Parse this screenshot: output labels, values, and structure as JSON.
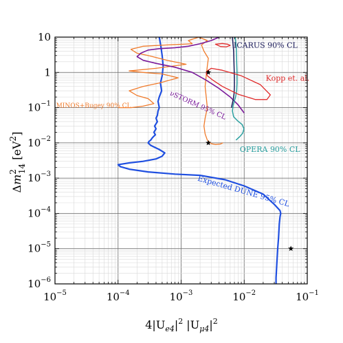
{
  "chart_data": {
    "type": "line",
    "x_scale": "log",
    "y_scale": "log",
    "xlim": [
      1e-05,
      0.1
    ],
    "ylim": [
      1e-06,
      10
    ],
    "grid": true,
    "xlabel": "4|U_e4|^2 |U_μ4|^2",
    "ylabel": "Δm_14^2 [eV^2]",
    "x_ticks": [
      {
        "base": "10",
        "exp": "−5"
      },
      {
        "base": "10",
        "exp": "−4"
      },
      {
        "base": "10",
        "exp": "−3"
      },
      {
        "base": "10",
        "exp": "−2"
      },
      {
        "base": "10",
        "exp": "−1"
      }
    ],
    "y_ticks": [
      {
        "label": "10",
        "exp": ""
      },
      {
        "label": "1",
        "exp": ""
      },
      {
        "base": "10",
        "exp": "−1"
      },
      {
        "base": "10",
        "exp": "−2"
      },
      {
        "base": "10",
        "exp": "−3"
      },
      {
        "base": "10",
        "exp": "−4"
      },
      {
        "base": "10",
        "exp": "−5"
      },
      {
        "base": "10",
        "exp": "−6"
      }
    ],
    "series": [
      {
        "name": "Expected DUNE 95% CL",
        "color": "#1f4fe0",
        "width": 2.2,
        "x": [
          0.00045,
          0.00046,
          0.00048,
          0.0005,
          0.00052,
          0.0005,
          0.00047,
          0.00049,
          0.00045,
          0.00043,
          0.00045,
          0.00043,
          0.00042,
          0.0004,
          0.00042,
          0.00038,
          0.0004,
          0.00037,
          0.00039,
          0.00035,
          0.00033,
          0.00031,
          0.0003,
          0.00033,
          0.00045,
          0.00055,
          0.0005,
          0.0004,
          0.00025,
          0.00015,
          0.0001,
          0.00011,
          0.00015,
          0.0003,
          0.0008,
          0.002,
          0.005,
          0.01,
          0.02,
          0.03,
          0.037,
          0.038,
          0.037,
          0.036,
          0.035,
          0.034,
          0.033,
          0.032,
          0.032
        ],
        "y": [
          10,
          8,
          5,
          3,
          1.5,
          0.8,
          0.5,
          0.3,
          0.2,
          0.15,
          0.1,
          0.08,
          0.06,
          0.05,
          0.04,
          0.03,
          0.025,
          0.02,
          0.017,
          0.014,
          0.012,
          0.011,
          0.01,
          0.0085,
          0.0065,
          0.0052,
          0.0042,
          0.0035,
          0.003,
          0.0027,
          0.0024,
          0.0021,
          0.0018,
          0.0015,
          0.0013,
          0.0012,
          0.0009,
          0.0006,
          0.00035,
          0.00018,
          0.00012,
          0.0001,
          8e-05,
          5e-05,
          2e-05,
          1e-05,
          4e-06,
          1.5e-06,
          1e-06
        ]
      },
      {
        "name": "MINOS+Bugey 90% CL",
        "color": "#f07a2a",
        "width": 1.3,
        "x": [
          0.0001,
          0.00016,
          0.00025,
          0.00037,
          0.0003,
          0.0002,
          0.00015,
          0.00025,
          0.00045,
          0.0009,
          0.0005,
          0.00025,
          0.00015,
          0.0004,
          0.0012,
          0.0006,
          0.0003,
          0.0002,
          0.00016,
          0.00025,
          0.0006,
          0.0015,
          0.0013,
          0.0019,
          0.0026,
          0.0021,
          0.0023,
          0.0027,
          0.0026,
          0.0025,
          0.0024,
          0.0025,
          0.0026,
          0.0025,
          0.0024,
          0.0023,
          0.0024,
          0.0026,
          0.003,
          0.0035,
          0.004,
          0.0042,
          0.0043,
          0.0044,
          0.0046
        ],
        "y": [
          0.1,
          0.1,
          0.11,
          0.13,
          0.18,
          0.22,
          0.3,
          0.4,
          0.5,
          0.7,
          0.9,
          1.0,
          1.1,
          1.3,
          1.7,
          2.2,
          3.0,
          3.5,
          4.5,
          5.5,
          6.0,
          6.5,
          8.0,
          10.0,
          8.0,
          6.0,
          4.0,
          2.5,
          1.5,
          0.8,
          0.4,
          0.2,
          0.1,
          0.07,
          0.05,
          0.03,
          0.018,
          0.012,
          0.0095,
          0.009,
          0.0092,
          0.0093,
          0.0095,
          0.0097,
          0.01
        ]
      },
      {
        "name": "νSTORM 95% CL",
        "color": "#7a1a9a",
        "width": 1.6,
        "x": [
          0.004,
          0.003,
          0.002,
          0.0013,
          0.0008,
          0.00045,
          0.0003,
          0.00023,
          0.0002,
          0.00025,
          0.0004,
          0.0008,
          0.0015,
          0.0025,
          0.004,
          0.006,
          0.008,
          0.01
        ],
        "y": [
          10,
          8.0,
          6.5,
          5.5,
          5.0,
          4.7,
          4.3,
          3.5,
          2.8,
          2.2,
          1.8,
          1.4,
          1.0,
          0.6,
          0.35,
          0.2,
          0.12,
          0.07
        ]
      },
      {
        "name": "OPERA 90% CL",
        "color": "#2aa0a0",
        "width": 1.5,
        "x": [
          0.0072,
          0.0075,
          0.0076,
          0.0077,
          0.0077,
          0.0076,
          0.0073,
          0.0067,
          0.0065,
          0.0068,
          0.0078,
          0.0093,
          0.0099,
          0.0095,
          0.0085,
          0.0074
        ],
        "y": [
          10,
          5,
          2,
          1,
          0.5,
          0.3,
          0.2,
          0.12,
          0.08,
          0.055,
          0.043,
          0.033,
          0.025,
          0.019,
          0.015,
          0.012
        ]
      },
      {
        "name": "ICARUS 90% CL",
        "color": "#1a1a5a",
        "width": 1.5,
        "x": [
          0.0065,
          0.0068,
          0.0069,
          0.007,
          0.007,
          0.0069,
          0.0067,
          0.0064,
          0.0063
        ],
        "y": [
          10,
          4,
          1.5,
          0.7,
          0.4,
          0.25,
          0.17,
          0.12,
          0.1
        ]
      },
      {
        "name": "Kopp et. al.",
        "color": "#e02a2a",
        "width": 1.3,
        "closed": true,
        "x": [
          0.0026,
          0.003,
          0.0045,
          0.009,
          0.018,
          0.026,
          0.023,
          0.015,
          0.008,
          0.0045,
          0.0032,
          0.0026,
          0.0025,
          0.0026
        ],
        "y": [
          1.1,
          1.3,
          1.15,
          0.8,
          0.45,
          0.23,
          0.17,
          0.17,
          0.24,
          0.4,
          0.6,
          0.8,
          0.95,
          1.1
        ]
      },
      {
        "name": "red-island-top",
        "color": "#e02a2a",
        "width": 1.3,
        "closed": true,
        "x": [
          0.0035,
          0.0045,
          0.0055,
          0.006,
          0.0052,
          0.0042,
          0.0035
        ],
        "y": [
          6.3,
          6.6,
          6.3,
          5.8,
          5.3,
          5.4,
          6.3
        ]
      }
    ],
    "stars": [
      {
        "x": 0.0027,
        "y": 1.0
      },
      {
        "x": 0.0027,
        "y": 0.01
      },
      {
        "x": 0.055,
        "y": 1e-05
      }
    ],
    "annotations": [
      {
        "text": "ICARUS 90% CL",
        "color": "#1a1a5a",
        "x": 0.0068,
        "y": 5.0,
        "rotate": 0,
        "size": 11
      },
      {
        "text": "Kopp et. al.",
        "color": "#e02a2a",
        "x": 0.022,
        "y": 0.58,
        "rotate": 0,
        "size": 11
      },
      {
        "text": "MINOS+Bugey 90% CL",
        "color": "#f07a2a",
        "x": 1.04e-05,
        "y": 0.1,
        "rotate": 0,
        "size": 9
      },
      {
        "text": "νSTORM 95% CL",
        "color": "#7a1a9a",
        "x": 0.00065,
        "y": 0.23,
        "rotate": 24,
        "size": 10
      },
      {
        "text": "OPERA 90% CL",
        "color": "#2aa0a0",
        "x": 0.0085,
        "y": 0.0055,
        "rotate": 0,
        "size": 11
      },
      {
        "text": "Expected DUNE 95% CL",
        "color": "#1f4fe0",
        "x": 0.0018,
        "y": 0.00086,
        "rotate": 16,
        "size": 11
      }
    ]
  }
}
